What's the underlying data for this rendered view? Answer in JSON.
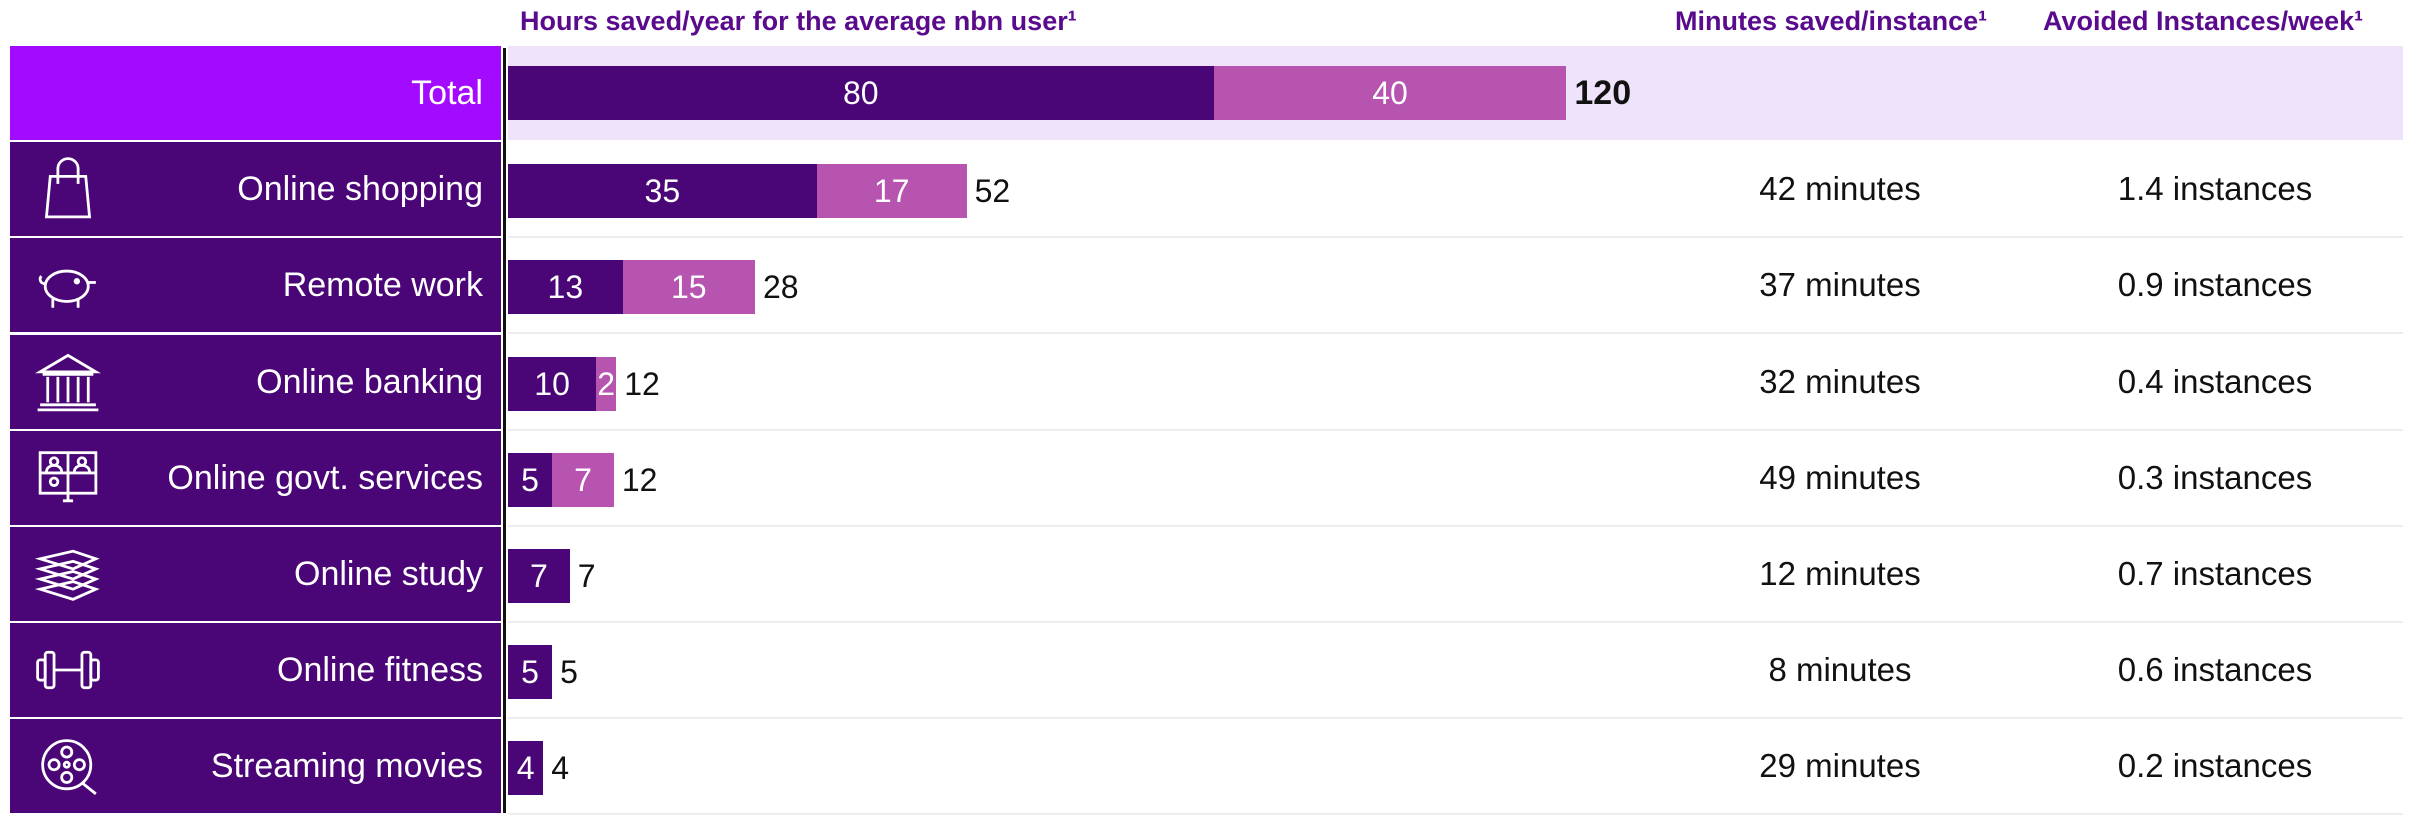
{
  "headers": {
    "hours": "Hours saved/year for the average nbn user¹",
    "minutes": "Minutes saved/instance¹",
    "avoided": "Avoided Instances/week¹"
  },
  "colors": {
    "dark_purple": "#4a0676",
    "light_purple": "#b654b0",
    "total_label_bg": "#a20bff",
    "total_row_bg": "#efe3fb",
    "header_text": "#5a0a8c"
  },
  "rows": [
    {
      "label": "Total",
      "icon": "",
      "a": "80",
      "b": "40",
      "total": "120",
      "minutes": "",
      "instances": ""
    },
    {
      "label": "Online shopping",
      "icon": "shopping-bag-icon",
      "a": "35",
      "b": "17",
      "total": "52",
      "minutes": "42 minutes",
      "instances": "1.4 instances"
    },
    {
      "label": "Remote work",
      "icon": "piggy-bank-icon",
      "a": "13",
      "b": "15",
      "total": "28",
      "minutes": "37 minutes",
      "instances": "0.9 instances"
    },
    {
      "label": "Online banking",
      "icon": "bank-building-icon",
      "a": "10",
      "b": "2",
      "total": "12",
      "minutes": "32 minutes",
      "instances": "0.4 instances"
    },
    {
      "label": "Online govt. services",
      "icon": "video-call-icon",
      "a": "5",
      "b": "7",
      "total": "12",
      "minutes": "49 minutes",
      "instances": "0.3 instances"
    },
    {
      "label": "Online study",
      "icon": "books-icon",
      "a": "7",
      "b": "",
      "total": "7",
      "minutes": "12 minutes",
      "instances": "0.7 instances"
    },
    {
      "label": "Online fitness",
      "icon": "dumbbell-icon",
      "a": "5",
      "b": "",
      "total": "5",
      "minutes": "8 minutes",
      "instances": "0.6 instances"
    },
    {
      "label": "Streaming movies",
      "icon": "film-reel-icon",
      "a": "4",
      "b": "",
      "total": "4",
      "minutes": "29 minutes",
      "instances": "0.2 instances"
    }
  ],
  "chart_data": {
    "type": "bar",
    "orientation": "horizontal",
    "stacked": true,
    "title": "Hours saved/year for the average nbn user¹",
    "categories": [
      "Total",
      "Online shopping",
      "Remote work",
      "Online banking",
      "Online govt. services",
      "Online study",
      "Online fitness",
      "Streaming movies"
    ],
    "series": [
      {
        "values": [
          80,
          35,
          13,
          10,
          5,
          7,
          5,
          4
        ],
        "color": "#4a0676"
      },
      {
        "values": [
          40,
          17,
          15,
          2,
          7,
          0,
          0,
          0
        ],
        "color": "#b654b0"
      }
    ],
    "totals": [
      120,
      52,
      28,
      12,
      12,
      7,
      5,
      4
    ],
    "minutes_saved_per_instance": [
      "",
      "42 minutes",
      "37 minutes",
      "32 minutes",
      "49 minutes",
      "12 minutes",
      "8 minutes",
      "29 minutes"
    ],
    "avoided_instances_per_week": [
      "",
      "1.4 instances",
      "0.9 instances",
      "0.4 instances",
      "0.3 instances",
      "0.7 instances",
      "0.6 instances",
      "0.2 instances"
    ],
    "grid": false,
    "legend": "none"
  }
}
